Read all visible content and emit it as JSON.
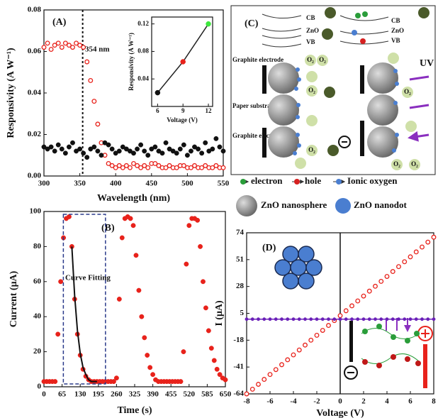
{
  "chart_data": [
    {
      "type": "scatter",
      "title": "(A)",
      "xlabel": "Wavelength (nm)",
      "ylabel": "Responsivity (A W⁻¹)",
      "xlim": [
        300,
        550
      ],
      "xticks": [
        300,
        350,
        400,
        450,
        500,
        550
      ],
      "ylim": [
        0,
        0.08
      ],
      "yticks": [
        {
          "value": 0,
          "label": "0.00"
        },
        0.02,
        0.04,
        0.06,
        0.08
      ],
      "vline": 354,
      "annotation": "354 nm",
      "x": [
        300,
        305,
        310,
        315,
        320,
        325,
        330,
        335,
        340,
        345,
        350,
        355,
        360,
        365,
        370,
        375,
        380,
        385,
        390,
        395,
        400,
        405,
        410,
        415,
        420,
        425,
        430,
        435,
        440,
        445,
        450,
        455,
        460,
        465,
        470,
        475,
        480,
        485,
        490,
        495,
        500,
        505,
        510,
        515,
        520,
        525,
        530,
        535,
        540,
        545,
        550
      ],
      "series": [
        {
          "color": "#e8221b",
          "style": "open",
          "values": [
            0.062,
            0.064,
            0.061,
            0.063,
            0.064,
            0.062,
            0.064,
            0.063,
            0.062,
            0.064,
            0.063,
            0.062,
            0.055,
            0.046,
            0.036,
            0.025,
            0.016,
            0.01,
            0.006,
            0.005,
            0.004,
            0.005,
            0.004,
            0.005,
            0.004,
            0.006,
            0.005,
            0.004,
            0.005,
            0.004,
            0.006,
            0.006,
            0.005,
            0.004,
            0.004,
            0.005,
            0.004,
            0.004,
            0.005,
            0.005,
            0.004,
            0.004,
            0.005,
            0.004,
            0.004,
            0.005,
            0.004,
            0.004,
            0.005,
            0.004,
            0.004
          ]
        },
        {
          "color": "#111111",
          "style": "filled",
          "values": [
            0.014,
            0.013,
            0.014,
            0.012,
            0.015,
            0.013,
            0.011,
            0.014,
            0.016,
            0.012,
            0.013,
            0.011,
            0.009,
            0.013,
            0.014,
            0.012,
            0.01,
            0.016,
            0.015,
            0.013,
            0.011,
            0.012,
            0.014,
            0.013,
            0.012,
            0.011,
            0.013,
            0.015,
            0.012,
            0.01,
            0.013,
            0.014,
            0.012,
            0.011,
            0.016,
            0.013,
            0.012,
            0.011,
            0.013,
            0.015,
            0.01,
            0.012,
            0.014,
            0.013,
            0.011,
            0.016,
            0.012,
            0.013,
            0.018,
            0.014,
            0.012
          ]
        }
      ]
    },
    {
      "type": "line",
      "xlabel": "Voltage (V)",
      "ylabel": "Responsivity (A W⁻¹)",
      "xlim": [
        5.3,
        12.5
      ],
      "xticks": [
        6,
        9,
        12
      ],
      "ylim": [
        0,
        0.13
      ],
      "yticks": [
        0.04,
        0.08,
        0.12
      ],
      "x": [
        6,
        9,
        12
      ],
      "series": [
        {
          "color": "#222222",
          "style": "line-points",
          "point_colors": [
            "#111111",
            "#e8221b",
            "#3ee83e"
          ],
          "values": [
            0.02,
            0.065,
            0.12
          ]
        }
      ]
    },
    {
      "type": "scatter",
      "title": "(B)",
      "xlabel": "Time (s)",
      "ylabel": "Current (μA)",
      "xlim": [
        0,
        650
      ],
      "xticks": [
        0,
        65,
        130,
        195,
        260,
        325,
        390,
        455,
        520,
        585,
        650
      ],
      "ylim": [
        0,
        100
      ],
      "yticks": [
        0,
        20,
        40,
        60,
        80,
        100
      ],
      "annotation": "Curve Fitting",
      "x": [
        0,
        10,
        20,
        30,
        40,
        50,
        60,
        70,
        80,
        90,
        100,
        110,
        120,
        130,
        140,
        150,
        160,
        170,
        180,
        190,
        200,
        210,
        220,
        230,
        240,
        250,
        260,
        270,
        280,
        290,
        300,
        310,
        320,
        330,
        340,
        350,
        360,
        370,
        380,
        390,
        400,
        410,
        420,
        430,
        440,
        450,
        460,
        470,
        480,
        490,
        500,
        510,
        520,
        530,
        540,
        550,
        560,
        570,
        580,
        590,
        600,
        610,
        620,
        630,
        640,
        650
      ],
      "series": [
        {
          "color": "#e8221b",
          "style": "filled",
          "values": [
            3,
            3,
            3,
            3,
            3,
            30,
            60,
            85,
            96,
            97,
            80,
            50,
            30,
            18,
            10,
            6,
            4,
            3,
            3,
            3,
            3,
            3,
            3,
            3,
            3,
            3,
            5,
            50,
            85,
            96,
            97,
            96,
            92,
            75,
            55,
            40,
            28,
            18,
            11,
            7,
            4,
            3,
            3,
            3,
            3,
            3,
            3,
            3,
            3,
            3,
            20,
            70,
            92,
            96,
            96,
            95,
            80,
            60,
            45,
            32,
            22,
            15,
            10,
            7,
            5,
            4
          ]
        },
        {
          "color": "#111111",
          "style": "line",
          "x": [
            100,
            110,
            120,
            130,
            140,
            150,
            160,
            170,
            180,
            190
          ],
          "values": [
            80,
            52,
            32,
            19,
            11,
            7,
            4,
            3,
            3,
            3
          ]
        }
      ]
    },
    {
      "type": "scatter",
      "title": "(D)",
      "xlabel": "Voltage (V)",
      "ylabel": "I (μA)",
      "xlim": [
        -8,
        8
      ],
      "xticks": [
        -8,
        -6,
        -4,
        -2,
        0,
        2,
        4,
        6,
        8
      ],
      "ylim": [
        -64,
        74
      ],
      "yticks": [
        -64,
        -41,
        -18,
        5,
        28,
        51,
        74
      ],
      "zero_line": true,
      "x": [
        -8,
        -7.5,
        -7,
        -6.5,
        -6,
        -5.5,
        -5,
        -4.5,
        -4,
        -3.5,
        -3,
        -2.5,
        -2,
        -1.5,
        -1,
        -0.5,
        0,
        0.5,
        1,
        1.5,
        2,
        2.5,
        3,
        3.5,
        4,
        4.5,
        5,
        5.5,
        6,
        6.5,
        7,
        7.5,
        8
      ],
      "series": [
        {
          "color": "#e8221b",
          "style": "open",
          "values": [
            -64,
            -60,
            -55.8,
            -51.6,
            -47.4,
            -43.2,
            -39,
            -34.8,
            -30.6,
            -26.4,
            -22.2,
            -18,
            -13.8,
            -9.6,
            -5.4,
            -1.2,
            3,
            7.2,
            11.4,
            15.6,
            19.8,
            24,
            28.2,
            32.4,
            36.6,
            40.8,
            45,
            49.2,
            53.4,
            57.6,
            61.8,
            66,
            70.2
          ]
        },
        {
          "color": "#6a1fb8",
          "style": "line-points",
          "values": [
            0,
            0,
            0,
            0,
            0,
            0,
            0,
            0,
            0,
            0,
            0,
            0,
            0,
            0,
            0,
            0,
            0,
            0,
            0,
            0,
            0,
            0,
            0,
            0,
            0,
            0,
            0,
            0,
            0,
            0,
            0,
            0,
            0
          ]
        }
      ]
    }
  ],
  "diagram": {
    "label": "(C)",
    "cb": "CB",
    "zno": "ZnO",
    "vb": "VB",
    "oxygen": "O₂",
    "graphite": "Graphite electrode",
    "paper": "Paper substrate",
    "uv": "UV",
    "electron": "electron",
    "hole": "hole",
    "ionic_oxygen": "Ionic oxygen",
    "nanosphere": "ZnO nanosphere",
    "nanodot": "ZnO nanodot"
  }
}
